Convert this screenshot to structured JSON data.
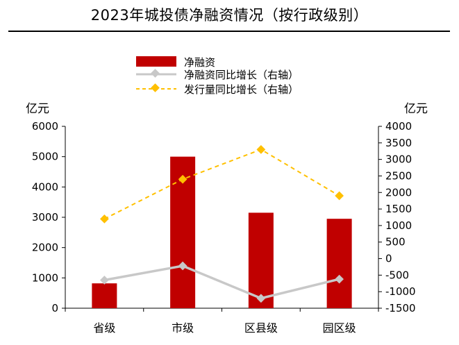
{
  "title": "2023年城投债净融资情况（按行政级别）",
  "colors": {
    "bar": "#c00000",
    "gray_line": "#c8c8c8",
    "yellow_line": "#ffc000",
    "axis": "#000000"
  },
  "chart_data": {
    "type": "bar",
    "title": "2023年城投债净融资情况（按行政级别）",
    "categories": [
      "省级",
      "市级",
      "区县级",
      "园区级"
    ],
    "y_left": {
      "unit": "亿元",
      "lim": [
        0,
        6000
      ],
      "ticks": [
        "6000",
        "5000",
        "4000",
        "3000",
        "2000",
        "1000",
        "0"
      ]
    },
    "y_right": {
      "unit": "亿元",
      "lim": [
        -1500,
        4000
      ],
      "ticks": [
        "4000",
        "3500",
        "3000",
        "2500",
        "2000",
        "1500",
        "1000",
        "500",
        "0",
        "-500",
        "-1000",
        "-1500"
      ]
    },
    "series": [
      {
        "name": "净融资",
        "type": "bar",
        "axis": "left",
        "values": [
          820,
          5000,
          3150,
          2950
        ]
      },
      {
        "name": "净融资同比增长（右轴）",
        "type": "line",
        "axis": "right",
        "style": "solid-gray-diamond",
        "values": [
          -650,
          -220,
          -1200,
          -620
        ]
      },
      {
        "name": "发行量同比增长（右轴）",
        "type": "line",
        "axis": "right",
        "style": "dashed-yellow-diamond",
        "values": [
          1200,
          2400,
          3300,
          1900
        ]
      }
    ],
    "grid": false,
    "legend_position": "top-center"
  }
}
